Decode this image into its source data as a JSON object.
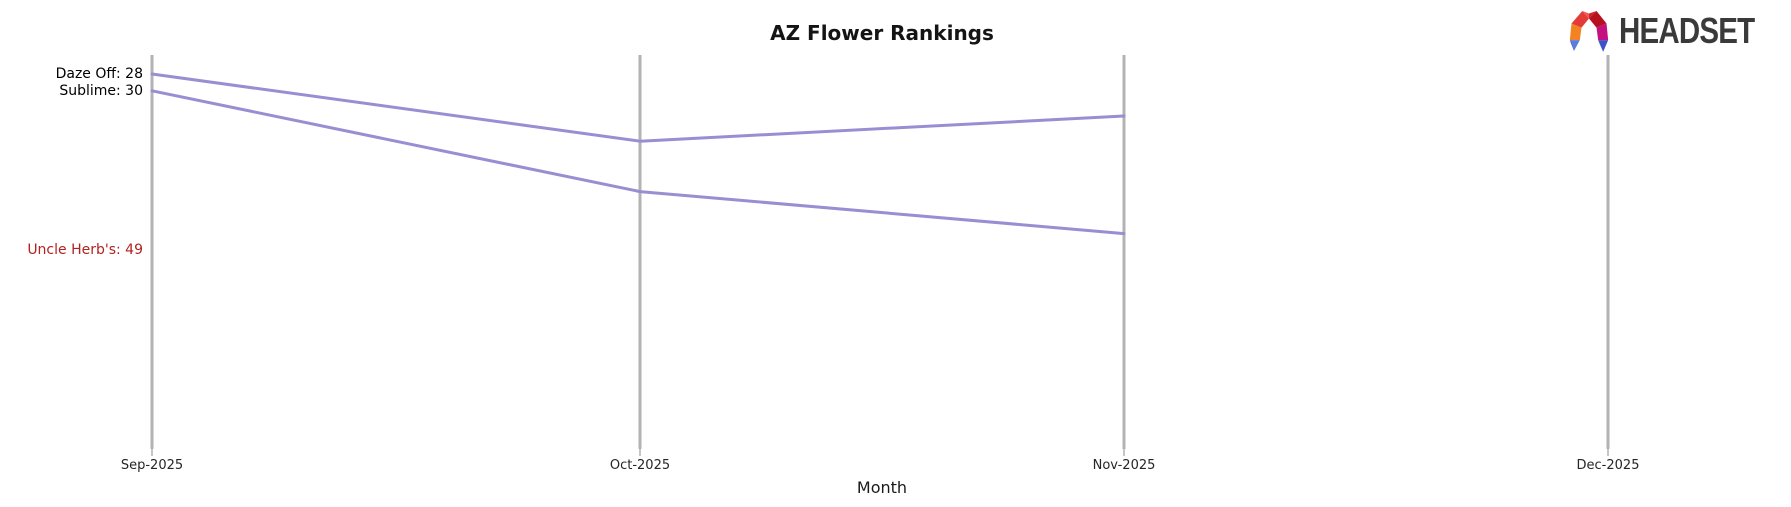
{
  "header": {
    "title": "AZ Flower Rankings"
  },
  "logo": {
    "text": "HEADSET",
    "icon": "headset-arch-icon",
    "icon_colors": {
      "orange": "#f58220",
      "red": "#e23b38",
      "crimson": "#b5111f",
      "magenta": "#c4117f",
      "blue_light": "#5a7de0",
      "blue_dark": "#2b3a9e",
      "indigo": "#4052c9",
      "text": "#3a3a3a"
    }
  },
  "chart_data": {
    "type": "line",
    "subtype": "bump-ranking",
    "title": "AZ Flower Rankings",
    "xlabel": "Month",
    "ylabel": "",
    "categories": [
      "Sep-2025",
      "Oct-2025",
      "Nov-2025",
      "Dec-2025"
    ],
    "grid": "vertical-month-axes",
    "legend_position": "left-inline-labels",
    "axis_color": "#b3b3b3",
    "tick_color": "#8c8c8c",
    "line_color": "#988ed2",
    "dropped_label_color": "#b22222",
    "active_label_color": "#000000",
    "series": [
      {
        "name": "Daze Off",
        "label": "Daze Off: 28",
        "start_rank": 28,
        "values": [
          28,
          36,
          33,
          null
        ],
        "has_line": true,
        "color": "#988ed2",
        "label_color": "#000000"
      },
      {
        "name": "Sublime",
        "label": "Sublime: 30",
        "start_rank": 30,
        "values": [
          30,
          42,
          47,
          null
        ],
        "has_line": true,
        "color": "#988ed2",
        "label_color": "#000000"
      },
      {
        "name": "Uncle Herb's",
        "label": "Uncle Herb's: 49",
        "start_rank": 49,
        "values": [
          49,
          null,
          null,
          null
        ],
        "has_line": false,
        "color": null,
        "label_color": "#b22222"
      }
    ]
  }
}
